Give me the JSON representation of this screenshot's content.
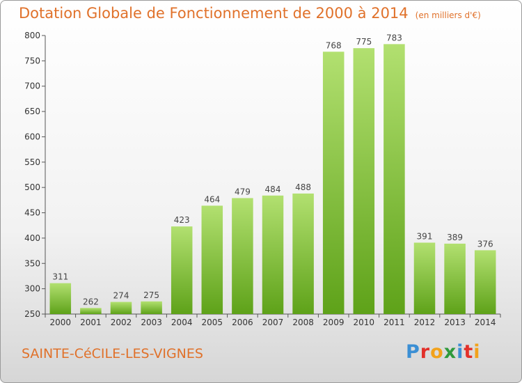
{
  "header": {
    "title": "Dotation Globale de Fonctionnement de 2000 à 2014",
    "unit": "(en milliers d'€)"
  },
  "commune": "SAINTE-CéCILE-LES-VIGNES",
  "logo": {
    "letters": [
      "P",
      "r",
      "o",
      "x",
      "i",
      "t",
      "i"
    ],
    "colors": [
      "#3b8fd4",
      "#e2302a",
      "#f2a21b",
      "#2f9a3c",
      "#3b8fd4",
      "#e2302a",
      "#f2a21b"
    ]
  },
  "colors": {
    "accent": "#e0712a",
    "bar_light": "#b2e070",
    "bar_dark": "#5ea219"
  },
  "chart_data": {
    "type": "bar",
    "categories": [
      "2000",
      "2001",
      "2002",
      "2003",
      "2004",
      "2005",
      "2006",
      "2007",
      "2008",
      "2009",
      "2010",
      "2011",
      "2012",
      "2013",
      "2014"
    ],
    "values": [
      311,
      262,
      274,
      275,
      423,
      464,
      479,
      484,
      488,
      768,
      775,
      783,
      391,
      389,
      376
    ],
    "ylim": [
      250,
      800
    ],
    "yticks": [
      250,
      300,
      350,
      400,
      450,
      500,
      550,
      600,
      650,
      700,
      750,
      800
    ],
    "grid": false,
    "xlabel": "",
    "ylabel": ""
  }
}
